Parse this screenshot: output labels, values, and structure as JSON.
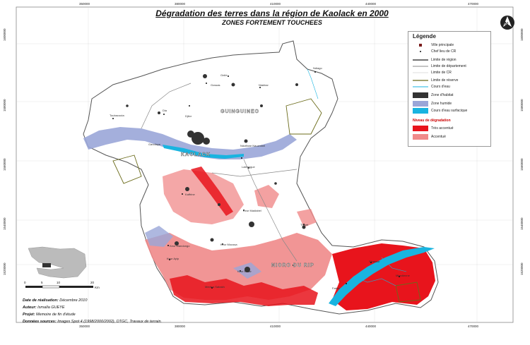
{
  "title": "Dégradation des terres dans la région de Kaolack en 2000",
  "subtitle": "ZONES FORTEMENT TOUCHEES",
  "grid": {
    "x_ticks": [
      "350000",
      "380000",
      "410000",
      "440000",
      "470000"
    ],
    "y_ticks": [
      "1600000",
      "1580000",
      "1560000",
      "1540000",
      "1520000"
    ]
  },
  "legend": {
    "title": "Légende",
    "items": [
      {
        "label": "Ville principale",
        "symbol": "square-dark"
      },
      {
        "label": "Chef lieu de CR",
        "symbol": "dot"
      },
      {
        "label": "Limite de région",
        "symbol": "line-thick"
      },
      {
        "label": "Limite de département",
        "symbol": "line-medium"
      },
      {
        "label": "Limite de CR",
        "symbol": "line-thin"
      },
      {
        "label": "Limite de réserve",
        "symbol": "line-olive"
      },
      {
        "label": "Cours d'eau",
        "symbol": "line-blue"
      },
      {
        "label": "Zone d'habitat",
        "symbol": "fill-dark"
      },
      {
        "label": "Zone humide",
        "symbol": "fill-lavender"
      },
      {
        "label": "Cours d'eau surfacique",
        "symbol": "fill-cyan"
      }
    ],
    "degradation_title": "Niveau de dégradation",
    "degradation_items": [
      {
        "label": "Très accentué",
        "color": "#e8141c"
      },
      {
        "label": "Accentué",
        "color": "#f08a8a"
      }
    ]
  },
  "places": {
    "departments": [
      "GUINGUINEO",
      "KAOLACK",
      "NIORO DU RIP"
    ],
    "towns": [
      "Gossas",
      "Gnibi",
      "Niakhar",
      "Ndiago",
      "Dia",
      "Djilor",
      "Toubacouta",
      "Ndoffane Nauzmbel",
      "Latmingue",
      "Kaffrine",
      "Keur Madiabel",
      "Thiaré",
      "Keur Mandongo",
      "Keur Ayip",
      "Keur Moussa",
      "Medina Sabakh",
      "Keur Matar",
      "Gandiaye",
      "Fatick",
      "Sibassor",
      "Mbedienne"
    ]
  },
  "inset": {
    "scale_ticks": [
      "0",
      "5",
      "10",
      "20"
    ],
    "scale_unit": "Km"
  },
  "metadata": {
    "date_label": "Date de réalisation:",
    "date_value": "Décembre 2010",
    "author_label": "Auteur:",
    "author_value": "Ismaïla GUEYE",
    "project_label": "Projet:",
    "project_value": "Memoire de fin d'étude",
    "data_label": "Données sources:",
    "data_value": "Images Spot 4 (1998/2000/2002), DTGC, Travaux de terrain."
  },
  "colors": {
    "very_severe": "#e8141c",
    "severe": "#f08a8a",
    "wetland": "#9aa6d8",
    "water": "#19b4e0",
    "habitat": "#333333"
  }
}
